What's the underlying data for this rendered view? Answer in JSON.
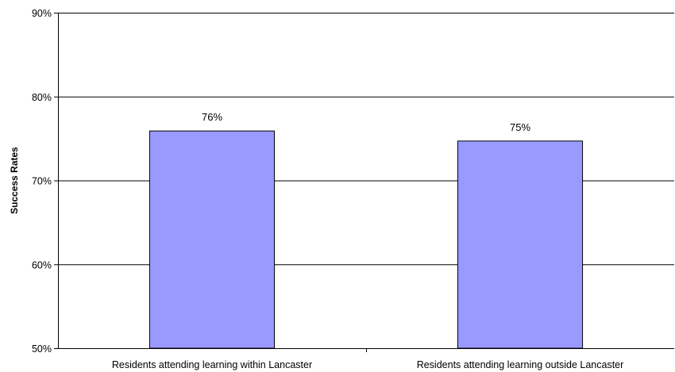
{
  "chart_data": {
    "type": "bar",
    "title": "",
    "xlabel": "",
    "ylabel": "Success Rates",
    "categories": [
      "Residents attending learning within Lancaster",
      "Residents attending learning outside Lancaster"
    ],
    "values": [
      75.9,
      74.7
    ],
    "data_labels": [
      "76%",
      "75%"
    ],
    "ylim": [
      50,
      90
    ],
    "yticks": [
      50,
      60,
      70,
      80,
      90
    ],
    "ytick_labels": [
      "50%",
      "60%",
      "70%",
      "80%",
      "90%"
    ],
    "grid": true,
    "legend": "none",
    "colors": {
      "bar_fill": "#9999ff",
      "bar_stroke": "#000000",
      "gridline": "#000000",
      "axis": "#000000",
      "background": "#ffffff"
    }
  }
}
